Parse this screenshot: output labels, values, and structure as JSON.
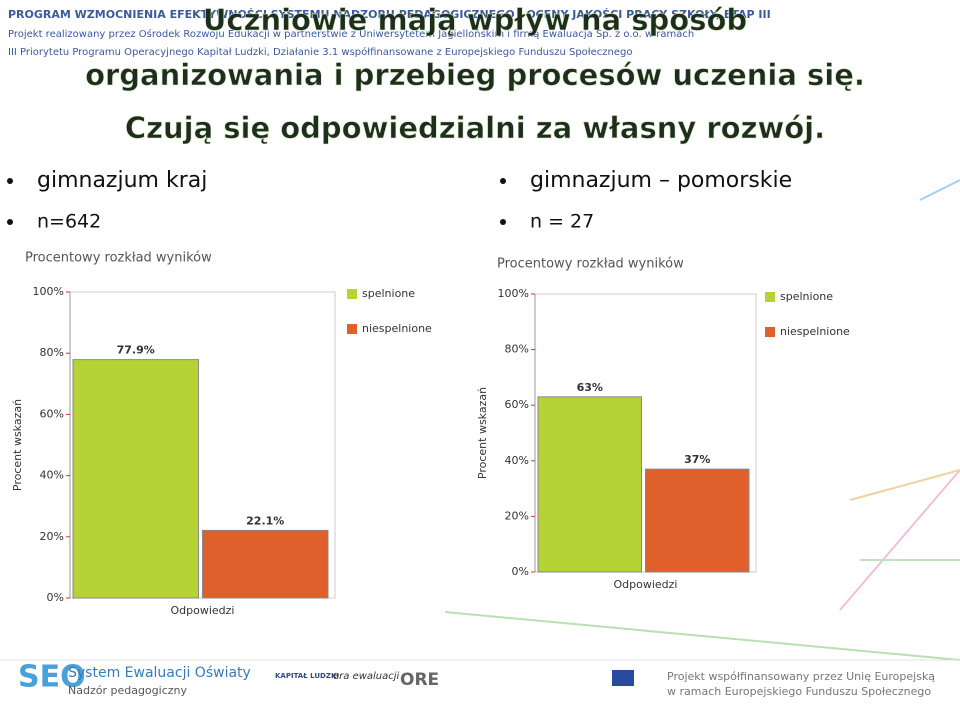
{
  "header": {
    "program": "PROGRAM WZMOCNIENIA EFEKTYWNOŚCI SYSTEMU NADZORU PEDAGOGICZNEGO I OCENY JAKOŚCI PRACY SZKOŁY, ETAP III",
    "project": "Projekt realizowany przez Ośrodek Rozwoju Edukacji w partnerstwie z Uniwersytetem Jagiellońskim i firmą Ewaluacja Sp. z o.o. w ramach",
    "priority": "III Priorytetu Programu Operacyjnego Kapitał Ludzki, Działanie 3.1 współfinansowane z Europejskiego Funduszu Społecznego"
  },
  "slide": {
    "title_lines": [
      "Uczniowie mają wpływ na sposób",
      "organizowania i przebieg procesów uczenia się.",
      "Czują się odpowiedzialni za własny rozwój."
    ],
    "left_bullets": [
      "gimnazjum kraj",
      "n=642"
    ],
    "right_bullets": [
      "gimnazjum – pomorskie",
      "n = 27"
    ]
  },
  "footer": {
    "seo_title": "System Ewaluacji Oświaty",
    "seo_subtitle": "Nadzór pedagogiczny",
    "logo_kl": "KAPITAŁ LUDZKI",
    "logo_era": "era ewaluacji",
    "logo_ore": "ORE",
    "eu_note_lines": [
      "Projekt współfinansowany przez Unię Europejską",
      "w ramach Europejskiego Funduszu Społecznego"
    ]
  },
  "chart_data": [
    {
      "type": "bar",
      "title": "Procentowy rozkład wyników",
      "y_label": "Procent wskazań",
      "x_label": "Odpowiedzi",
      "categories": [
        null
      ],
      "series": [
        {
          "name": "spelnione",
          "color": "#b5d334",
          "values": [
            77.9
          ],
          "value_labels": [
            "77.9%"
          ]
        },
        {
          "name": "niespelnione",
          "color": "#e0602c",
          "values": [
            22.1
          ],
          "value_labels": [
            "22.1%"
          ]
        }
      ],
      "ylim": [
        0,
        100
      ],
      "yticks": [
        {
          "value": 0,
          "label": "0%"
        },
        {
          "value": 20,
          "label": "20%"
        },
        {
          "value": 40,
          "label": "40%"
        },
        {
          "value": 60,
          "label": "60%"
        },
        {
          "value": 80,
          "label": "80%"
        },
        {
          "value": 100,
          "label": "100%"
        }
      ],
      "legend": "right"
    },
    {
      "type": "bar",
      "title": "Procentowy rozkład wyników",
      "y_label": "Procent wskazań",
      "x_label": "Odpowiedzi",
      "categories": [
        null
      ],
      "series": [
        {
          "name": "spelnione",
          "color": "#b5d334",
          "values": [
            63
          ],
          "value_labels": [
            "63%"
          ]
        },
        {
          "name": "niespelnione",
          "color": "#e0602c",
          "values": [
            37
          ],
          "value_labels": [
            "37%"
          ]
        }
      ],
      "ylim": [
        0,
        100
      ],
      "yticks": [
        {
          "value": 0,
          "label": "0%"
        },
        {
          "value": 20,
          "label": "20%"
        },
        {
          "value": 40,
          "label": "40%"
        },
        {
          "value": 60,
          "label": "60%"
        },
        {
          "value": 80,
          "label": "80%"
        },
        {
          "value": 100,
          "label": "100%"
        }
      ],
      "legend": "right"
    }
  ]
}
